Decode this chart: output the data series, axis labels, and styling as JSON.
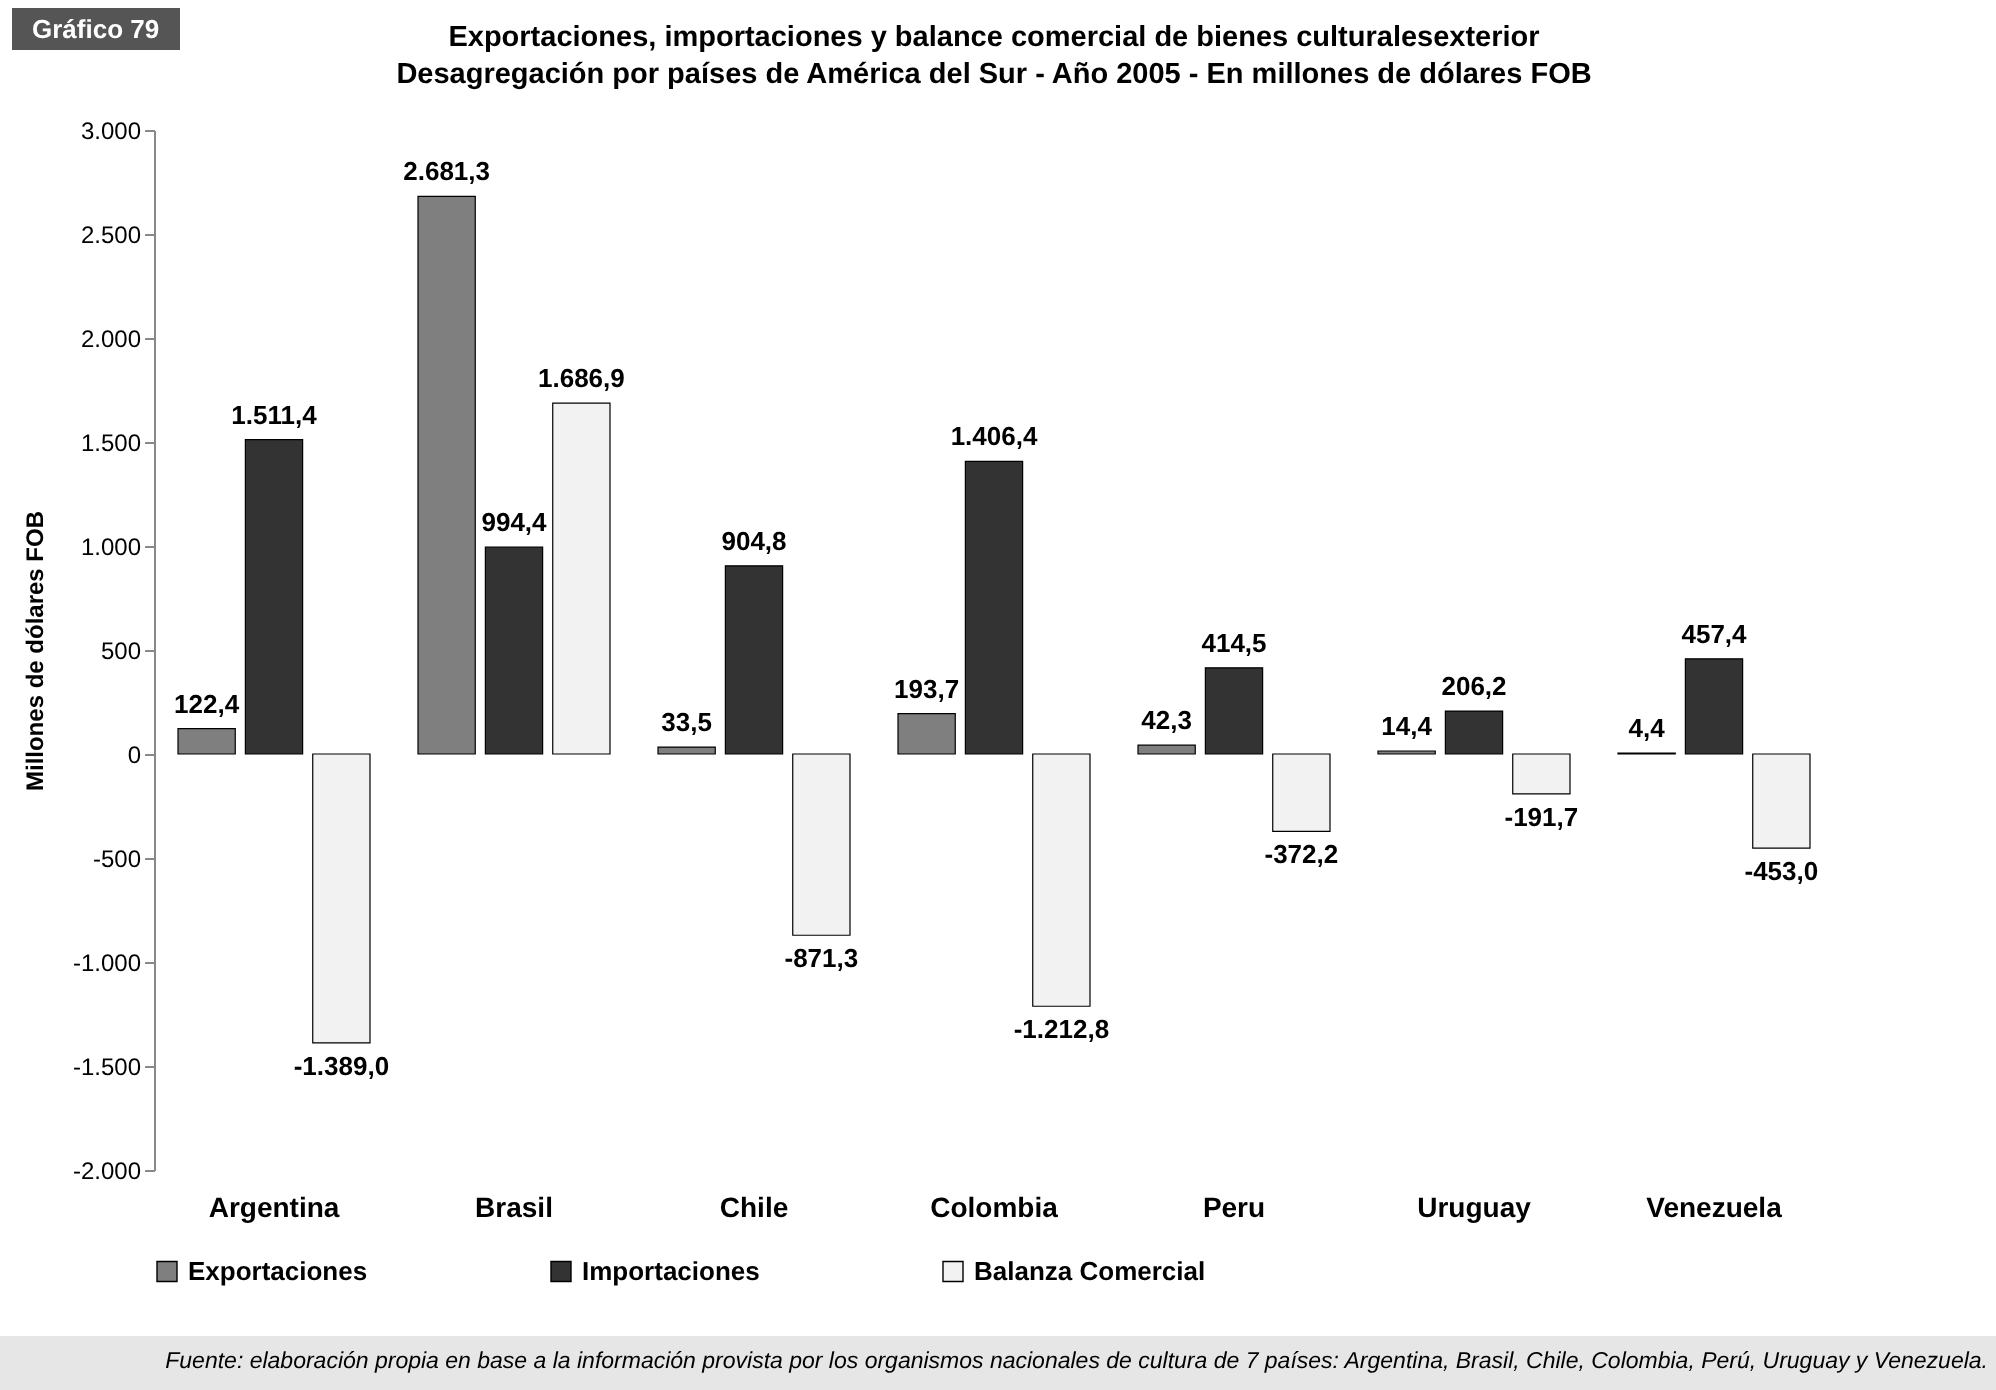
{
  "chart_data": {
    "type": "bar",
    "title": "Exportaciones, importaciones y balance comercial de bienes culturalesexterior",
    "subtitle": "Desagregación por países de América del Sur - Año 2005 - En millones de dólares FOB",
    "ylabel": "Millones de dólares FOB",
    "categories": [
      "Argentina",
      "Brasil",
      "Chile",
      "Colombia",
      "Peru",
      "Uruguay",
      "Venezuela"
    ],
    "series": [
      {
        "name": "Exportaciones",
        "color": "#7f7f7f",
        "values": [
          122.4,
          2681.3,
          33.5,
          193.7,
          42.3,
          14.4,
          4.4
        ],
        "value_labels": [
          "122,4",
          "2.681,3",
          "33,5",
          "193,7",
          "42,3",
          "14,4",
          "4,4"
        ]
      },
      {
        "name": "Importaciones",
        "color": "#333333",
        "values": [
          1511.4,
          994.4,
          904.8,
          1406.4,
          414.5,
          206.2,
          457.4
        ],
        "value_labels": [
          "1.511,4",
          "994,4",
          "904,8",
          "1.406,4",
          "414,5",
          "206,2",
          "457,4"
        ]
      },
      {
        "name": "Balanza Comercial",
        "color": "#f2f2f2",
        "values": [
          -1389.0,
          1686.9,
          -871.3,
          -1212.8,
          -372.2,
          -191.7,
          -453.0
        ],
        "value_labels": [
          "-1.389,0",
          "1.686,9",
          "-871,3",
          "-1.212,8",
          "-372,2",
          "-191,7",
          "-453,0"
        ]
      }
    ],
    "ylim": [
      -2000,
      3000
    ],
    "yticks": [
      {
        "value": -2000,
        "label": "-2.000"
      },
      {
        "value": -1500,
        "label": "-1.500"
      },
      {
        "value": -1000,
        "label": "-1.000"
      },
      {
        "value": -500,
        "label": "-500"
      },
      {
        "value": 0,
        "label": "0"
      },
      {
        "value": 500,
        "label": "500"
      },
      {
        "value": 1000,
        "label": "1.000"
      },
      {
        "value": 1500,
        "label": "1.500"
      },
      {
        "value": 2000,
        "label": "2.000"
      },
      {
        "value": 2500,
        "label": "2.500"
      },
      {
        "value": 3000,
        "label": "3.000"
      }
    ],
    "grid": false,
    "legend": "bottom",
    "annotations": [
      "Gráfico 79",
      "Fuente: elaboración propia en base a la información provista por los organismos nacionales de cultura de 7 países: Argentina, Brasil, Chile, Colombia, Perú, Uruguay y Venezuela."
    ]
  }
}
